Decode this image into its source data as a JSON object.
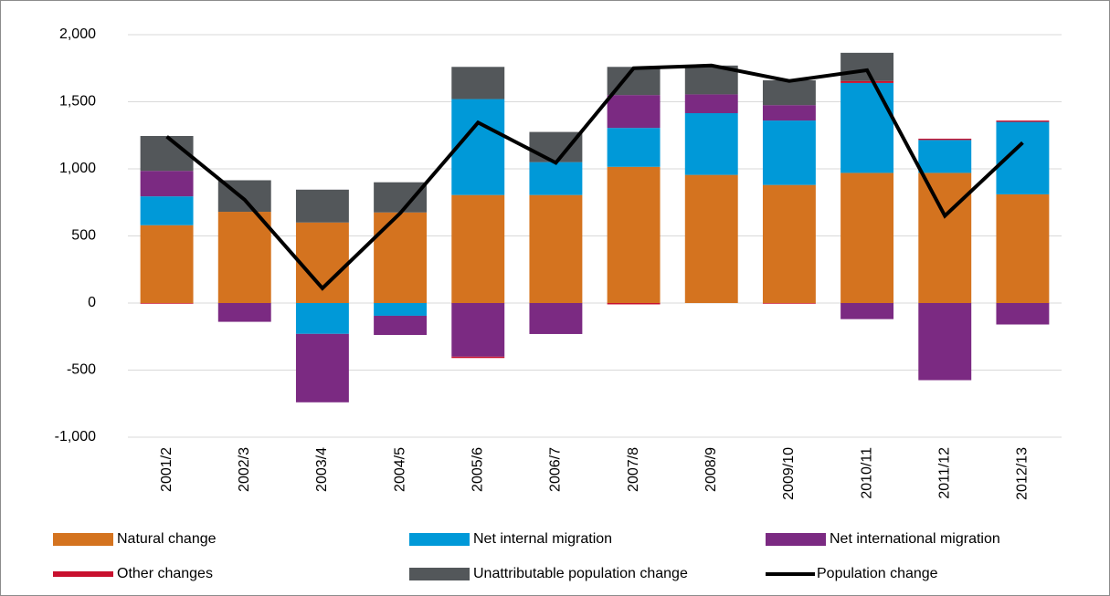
{
  "chart_data": {
    "type": "bar",
    "categories": [
      "2001/2",
      "2002/3",
      "2003/4",
      "2004/5",
      "2005/6",
      "2006/7",
      "2007/8",
      "2008/9",
      "2009/10",
      "2010/11",
      "2011/12",
      "2012/13"
    ],
    "series": [
      {
        "name": "Natural change",
        "color": "#d4731f",
        "values": [
          580,
          680,
          600,
          675,
          805,
          805,
          1015,
          955,
          880,
          970,
          970,
          810
        ]
      },
      {
        "name": "Net internal migration",
        "color": "#0099d8",
        "values": [
          215,
          0,
          -230,
          -95,
          715,
          245,
          290,
          460,
          480,
          670,
          245,
          540
        ]
      },
      {
        "name": "Net international migration",
        "color": "#7b2a82",
        "values": [
          190,
          -140,
          -510,
          -143,
          -400,
          -231,
          245,
          140,
          115,
          -120,
          -575,
          -160
        ]
      },
      {
        "name": "Other changes",
        "color": "#c8102e",
        "values": [
          -5,
          0,
          0,
          0,
          -10,
          0,
          -10,
          0,
          -5,
          15,
          10,
          10
        ]
      },
      {
        "name": "Unattributable population change",
        "color": "#53575a",
        "values": [
          260,
          235,
          245,
          225,
          240,
          225,
          210,
          215,
          185,
          210,
          0,
          0
        ]
      },
      {
        "name": "Population change",
        "type": "line",
        "color": "#000000",
        "values": [
          1240,
          770,
          110,
          670,
          1345,
          1045,
          1750,
          1770,
          1655,
          1735,
          650,
          1195
        ]
      }
    ],
    "ylim": [
      -1000,
      2000
    ],
    "yticks": [
      {
        "value": -1000,
        "label": "-1,000"
      },
      {
        "value": -500,
        "label": "-500"
      },
      0,
      500,
      {
        "value": 1000,
        "label": "1,000"
      },
      {
        "value": 1500,
        "label": "1,500"
      },
      {
        "value": 2000,
        "label": "2,000"
      }
    ],
    "grid": true,
    "legend": "bottom"
  }
}
